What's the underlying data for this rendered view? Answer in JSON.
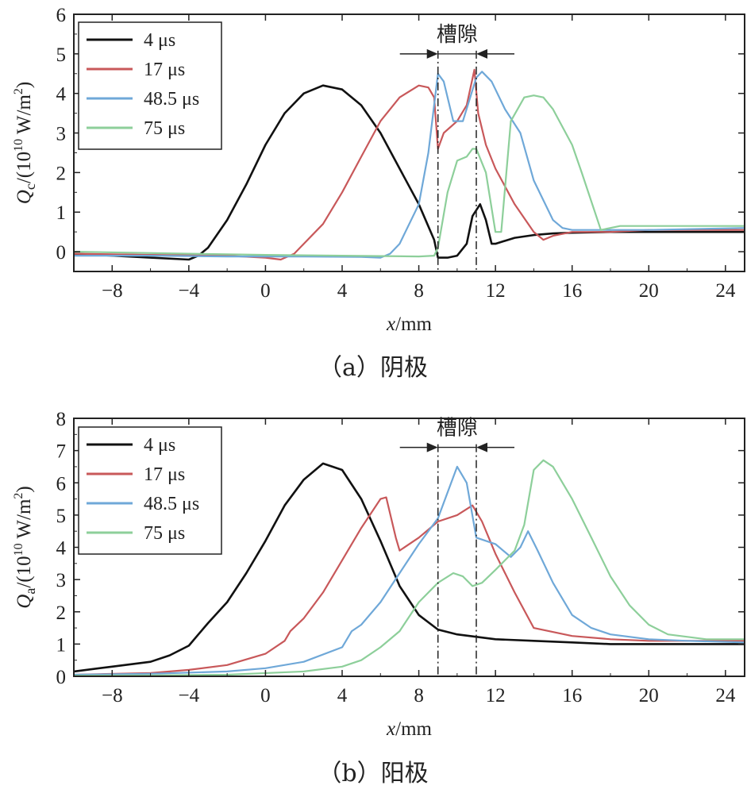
{
  "colors": {
    "c4": "#111111",
    "c17": "#c8585a",
    "c48": "#6fa8d8",
    "c75": "#8dcf9a"
  },
  "chart_data": [
    {
      "type": "line",
      "caption": "（a）阴极",
      "xlabel": "x/mm",
      "ylabel_main": "Q",
      "ylabel_sub": "c",
      "ylabel_rest": "/(10",
      "ylabel_exp": "10",
      "ylabel_unit": " W/m",
      "ylabel_sq": "2",
      "ylabel_close": ")",
      "xlim": [
        -10,
        25
      ],
      "ylim": [
        -0.5,
        6
      ],
      "xticks": [
        "-8",
        "-4",
        "0",
        "4",
        "8",
        "12",
        "16",
        "20",
        "24"
      ],
      "xtick_values": [
        -8,
        -4,
        0,
        4,
        8,
        12,
        16,
        20,
        24
      ],
      "yticks": [
        "0",
        "1",
        "2",
        "3",
        "4",
        "5",
        "6"
      ],
      "ytick_values": [
        0,
        1,
        2,
        3,
        4,
        5,
        6
      ],
      "gap_label": "槽隙",
      "gap_x": [
        9,
        11
      ],
      "gap_arrow_y": 5,
      "legend": [
        "4 μs",
        "17 μs",
        "48.5 μs",
        "75 μs"
      ],
      "series": [
        {
          "name": "4 μs",
          "color": "#111111",
          "x": [
            -10,
            -8,
            -6,
            -4,
            -3.5,
            -3,
            -2,
            -1,
            0,
            1,
            2,
            3,
            4,
            5,
            6,
            7,
            8,
            8.8,
            9,
            9.5,
            10,
            10.5,
            10.8,
            11.2,
            11.5,
            11.8,
            12,
            13,
            14,
            15,
            16,
            18,
            20,
            22,
            25
          ],
          "y": [
            -0.05,
            -0.1,
            -0.15,
            -0.2,
            -0.1,
            0.1,
            0.8,
            1.7,
            2.7,
            3.5,
            4.0,
            4.2,
            4.1,
            3.7,
            3.0,
            2.1,
            1.2,
            0.3,
            -0.15,
            -0.15,
            -0.1,
            0.2,
            0.9,
            1.2,
            0.8,
            0.2,
            0.2,
            0.35,
            0.42,
            0.46,
            0.48,
            0.5,
            0.5,
            0.5,
            0.5
          ]
        },
        {
          "name": "17 μs",
          "color": "#c8585a",
          "x": [
            -10,
            -6,
            -2,
            0,
            0.8,
            1.5,
            2,
            3,
            4,
            5,
            6,
            7,
            8,
            8.5,
            8.8,
            9,
            9.3,
            10,
            10.5,
            10.9,
            11.1,
            11.5,
            12,
            13,
            14,
            14.5,
            15,
            16,
            18,
            20,
            25
          ],
          "y": [
            -0.05,
            -0.08,
            -0.1,
            -0.15,
            -0.2,
            -0.05,
            0.2,
            0.7,
            1.5,
            2.4,
            3.3,
            3.9,
            4.2,
            4.15,
            3.9,
            2.6,
            3.0,
            3.3,
            3.7,
            4.6,
            3.5,
            2.7,
            2.1,
            1.2,
            0.5,
            0.3,
            0.4,
            0.5,
            0.5,
            0.55,
            0.55
          ]
        },
        {
          "name": "48.5 μs",
          "color": "#6fa8d8",
          "x": [
            -10,
            -6,
            -2,
            2,
            5,
            6,
            6.5,
            7,
            8,
            8.5,
            9,
            9.3,
            9.8,
            10.3,
            11,
            11.3,
            11.8,
            12.5,
            13.3,
            14,
            15,
            15.5,
            16,
            18,
            20,
            25
          ],
          "y": [
            -0.1,
            -0.1,
            -0.12,
            -0.12,
            -0.13,
            -0.15,
            -0.05,
            0.2,
            1.2,
            2.5,
            4.5,
            4.3,
            3.3,
            3.3,
            4.4,
            4.55,
            4.3,
            3.6,
            3.0,
            1.8,
            0.8,
            0.6,
            0.55,
            0.55,
            0.55,
            0.6
          ]
        },
        {
          "name": "75 μs",
          "color": "#8dcf9a",
          "x": [
            -10,
            -4,
            0,
            4,
            8,
            8.8,
            9,
            9.5,
            10,
            10.5,
            10.8,
            11,
            11.5,
            12,
            12.3,
            12.8,
            13.5,
            14,
            14.5,
            15,
            16,
            16.5,
            17.5,
            18.5,
            20,
            25
          ],
          "y": [
            0,
            -0.05,
            -0.08,
            -0.1,
            -0.12,
            -0.1,
            0.1,
            1.5,
            2.3,
            2.4,
            2.6,
            2.6,
            2.0,
            0.5,
            0.5,
            3.3,
            3.9,
            3.95,
            3.9,
            3.6,
            2.7,
            2.0,
            0.55,
            0.65,
            0.65,
            0.65
          ]
        }
      ]
    },
    {
      "type": "line",
      "caption": "（b）阳极",
      "xlabel": "x/mm",
      "ylabel_main": "Q",
      "ylabel_sub": "a",
      "ylabel_rest": "/(10",
      "ylabel_exp": "10",
      "ylabel_unit": " W/m",
      "ylabel_sq": "2",
      "ylabel_close": ")",
      "xlim": [
        -10,
        25
      ],
      "ylim": [
        0,
        8
      ],
      "xticks": [
        "-8",
        "-4",
        "0",
        "4",
        "8",
        "12",
        "16",
        "20",
        "24"
      ],
      "xtick_values": [
        -8,
        -4,
        0,
        4,
        8,
        12,
        16,
        20,
        24
      ],
      "yticks": [
        "0",
        "1",
        "2",
        "3",
        "4",
        "5",
        "6",
        "7",
        "8"
      ],
      "ytick_values": [
        0,
        1,
        2,
        3,
        4,
        5,
        6,
        7,
        8
      ],
      "gap_label": "槽隙",
      "gap_x": [
        9,
        11
      ],
      "gap_arrow_y": 7.1,
      "legend": [
        "4 μs",
        "17 μs",
        "48.5 μs",
        "75 μs"
      ],
      "series": [
        {
          "name": "4 μs",
          "color": "#111111",
          "x": [
            -10,
            -8,
            -6,
            -5,
            -4,
            -3.5,
            -3,
            -2,
            -1,
            0,
            1,
            2,
            3,
            4,
            5,
            6,
            7,
            8,
            9,
            10,
            12,
            14,
            16,
            18,
            20,
            25
          ],
          "y": [
            0.15,
            0.3,
            0.45,
            0.65,
            0.95,
            1.3,
            1.65,
            2.3,
            3.2,
            4.2,
            5.3,
            6.1,
            6.6,
            6.4,
            5.5,
            4.2,
            2.8,
            1.9,
            1.45,
            1.3,
            1.15,
            1.1,
            1.05,
            1.0,
            1.0,
            1.0
          ]
        },
        {
          "name": "17 μs",
          "color": "#c8585a",
          "x": [
            -10,
            -6,
            -4,
            -2,
            0,
            1,
            1.3,
            2,
            3,
            4,
            5,
            6,
            6.3,
            6.8,
            7,
            8,
            9,
            10,
            10.8,
            11.3,
            12,
            13,
            14,
            16,
            18,
            20,
            25
          ],
          "y": [
            0.05,
            0.1,
            0.2,
            0.35,
            0.7,
            1.1,
            1.4,
            1.8,
            2.6,
            3.6,
            4.6,
            5.5,
            5.55,
            4.3,
            3.9,
            4.3,
            4.8,
            5.0,
            5.3,
            4.8,
            3.8,
            2.6,
            1.5,
            1.25,
            1.15,
            1.1,
            1.1
          ]
        },
        {
          "name": "48.5 μs",
          "color": "#6fa8d8",
          "x": [
            -10,
            -6,
            -2,
            0,
            2,
            4,
            4.5,
            5,
            6,
            7,
            8,
            9,
            9.5,
            10,
            10.5,
            11,
            12,
            12.8,
            13.3,
            13.7,
            14.2,
            15,
            16,
            17,
            18,
            20,
            22,
            25
          ],
          "y": [
            0.05,
            0.08,
            0.15,
            0.25,
            0.45,
            0.9,
            1.4,
            1.6,
            2.3,
            3.2,
            4.1,
            4.9,
            5.7,
            6.5,
            6.0,
            4.3,
            4.1,
            3.7,
            4.0,
            4.5,
            3.9,
            2.9,
            1.9,
            1.5,
            1.3,
            1.15,
            1.1,
            1.05
          ]
        },
        {
          "name": "75 μs",
          "color": "#8dcf9a",
          "x": [
            -10,
            -6,
            -2,
            2,
            4,
            5,
            6,
            7,
            8,
            9,
            9.8,
            10.3,
            10.8,
            11.3,
            12,
            13,
            13.5,
            14,
            14.5,
            15,
            16,
            17,
            18,
            19,
            20,
            21,
            23,
            25
          ],
          "y": [
            0.02,
            0.03,
            0.05,
            0.15,
            0.3,
            0.5,
            0.9,
            1.4,
            2.3,
            2.9,
            3.2,
            3.1,
            2.8,
            2.9,
            3.3,
            3.9,
            4.7,
            6.4,
            6.7,
            6.5,
            5.5,
            4.3,
            3.1,
            2.2,
            1.6,
            1.3,
            1.15,
            1.15
          ]
        }
      ]
    }
  ]
}
